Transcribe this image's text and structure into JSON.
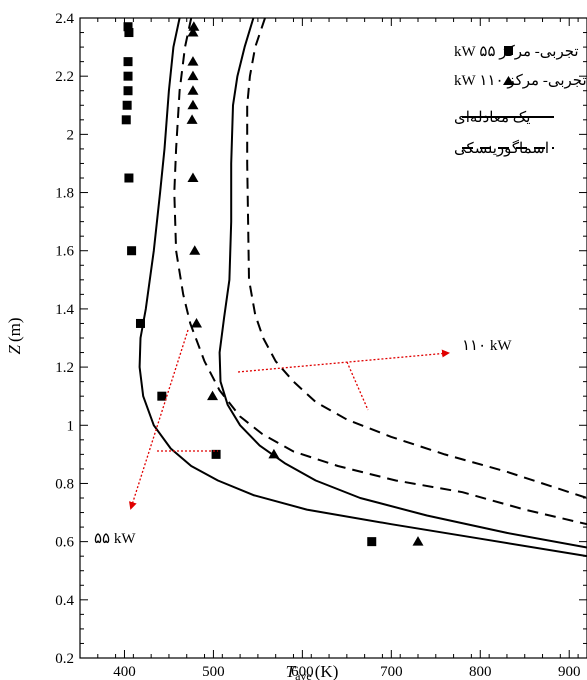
{
  "chart_data": {
    "type": "line",
    "xlabel": "T",
    "xlabel_sub": "ave",
    "xlabel_unit": "(K)",
    "ylabel": "Z",
    "ylabel_unit": "(m)",
    "xlim": [
      350,
      920
    ],
    "ylim": [
      0.2,
      2.4
    ],
    "xticks": [
      400,
      500,
      600,
      700,
      800,
      900
    ],
    "yticks": [
      0.2,
      0.4,
      0.6,
      0.8,
      1,
      1.2,
      1.4,
      1.6,
      1.8,
      2,
      2.2,
      2.4
    ],
    "xtick_labels": [
      "400",
      "500",
      "600",
      "700",
      "800",
      "900"
    ],
    "ytick_labels": [
      "0.2",
      "0.4",
      "0.6",
      "0.8",
      "1",
      "1.2",
      "1.4",
      "1.6",
      "1.8",
      "2",
      "2.2",
      "2.4"
    ],
    "grid": false,
    "legend_position": "top-right",
    "legend": [
      {
        "label": "تجربی- مرکز ۵۵ kW",
        "marker": "square"
      },
      {
        "label": "تجربی- مرکز ۱۱۰ kW",
        "marker": "triangle"
      },
      {
        "label": "یک معادله‌ای",
        "line": "solid"
      },
      {
        "label": "اسماگورینسکی",
        "line": "dashed"
      }
    ],
    "series": [
      {
        "name": "تجربی- مرکز ۵۵ kW",
        "kind": "scatter",
        "marker": "square",
        "points": [
          [
            404,
            2.37
          ],
          [
            405,
            2.35
          ],
          [
            404,
            2.25
          ],
          [
            404,
            2.2
          ],
          [
            404,
            2.15
          ],
          [
            403,
            2.1
          ],
          [
            402,
            2.05
          ],
          [
            405,
            1.85
          ],
          [
            408,
            1.6
          ],
          [
            418,
            1.35
          ],
          [
            442,
            1.1
          ],
          [
            503,
            0.9
          ],
          [
            678,
            0.6
          ]
        ]
      },
      {
        "name": "تجربی- مرکز ۱۱۰ kW",
        "kind": "scatter",
        "marker": "triangle",
        "points": [
          [
            478,
            2.37
          ],
          [
            477,
            2.35
          ],
          [
            477,
            2.25
          ],
          [
            477,
            2.2
          ],
          [
            477,
            2.15
          ],
          [
            477,
            2.1
          ],
          [
            476,
            2.05
          ],
          [
            477,
            1.85
          ],
          [
            479,
            1.6
          ],
          [
            481,
            1.35
          ],
          [
            499,
            1.1
          ],
          [
            568,
            0.9
          ],
          [
            730,
            0.6
          ]
        ]
      },
      {
        "name": "یک معادله‌ای",
        "kind": "line",
        "style": "solid",
        "group": "55 kW",
        "points": [
          [
            462,
            2.4
          ],
          [
            455,
            2.3
          ],
          [
            450,
            2.15
          ],
          [
            445,
            1.95
          ],
          [
            440,
            1.8
          ],
          [
            433,
            1.6
          ],
          [
            424,
            1.4
          ],
          [
            418,
            1.3
          ],
          [
            417,
            1.2
          ],
          [
            421,
            1.1
          ],
          [
            433,
            1.0
          ],
          [
            452,
            0.92
          ],
          [
            475,
            0.86
          ],
          [
            505,
            0.81
          ],
          [
            545,
            0.76
          ],
          [
            605,
            0.71
          ],
          [
            700,
            0.66
          ],
          [
            800,
            0.61
          ],
          [
            920,
            0.55
          ]
        ]
      },
      {
        "name": "یک معادله‌ای",
        "kind": "line",
        "style": "solid",
        "group": "110 kW",
        "points": [
          [
            545,
            2.4
          ],
          [
            535,
            2.3
          ],
          [
            527,
            2.2
          ],
          [
            522,
            2.1
          ],
          [
            520,
            1.9
          ],
          [
            520,
            1.7
          ],
          [
            518,
            1.5
          ],
          [
            512,
            1.37
          ],
          [
            507,
            1.25
          ],
          [
            508,
            1.15
          ],
          [
            516,
            1.07
          ],
          [
            530,
            1.0
          ],
          [
            552,
            0.93
          ],
          [
            580,
            0.87
          ],
          [
            615,
            0.81
          ],
          [
            665,
            0.75
          ],
          [
            740,
            0.69
          ],
          [
            830,
            0.63
          ],
          [
            920,
            0.58
          ]
        ]
      },
      {
        "name": "اسماگورینسکی",
        "kind": "line",
        "style": "dashed",
        "group": "55 kW",
        "points": [
          [
            475,
            2.4
          ],
          [
            468,
            2.3
          ],
          [
            462,
            2.15
          ],
          [
            458,
            1.95
          ],
          [
            456,
            1.8
          ],
          [
            458,
            1.6
          ],
          [
            466,
            1.45
          ],
          [
            474,
            1.35
          ],
          [
            490,
            1.22
          ],
          [
            507,
            1.12
          ],
          [
            530,
            1.03
          ],
          [
            555,
            0.97
          ],
          [
            590,
            0.91
          ],
          [
            640,
            0.86
          ],
          [
            705,
            0.81
          ],
          [
            780,
            0.77
          ],
          [
            850,
            0.71
          ],
          [
            920,
            0.66
          ]
        ]
      },
      {
        "name": "اسماگورینسکی",
        "kind": "line",
        "style": "dashed",
        "group": "110 kW",
        "points": [
          [
            558,
            2.4
          ],
          [
            547,
            2.3
          ],
          [
            541,
            2.2
          ],
          [
            538,
            2.1
          ],
          [
            538,
            1.9
          ],
          [
            539,
            1.7
          ],
          [
            540,
            1.5
          ],
          [
            547,
            1.38
          ],
          [
            556,
            1.3
          ],
          [
            570,
            1.22
          ],
          [
            590,
            1.15
          ],
          [
            615,
            1.08
          ],
          [
            650,
            1.02
          ],
          [
            700,
            0.96
          ],
          [
            760,
            0.9
          ],
          [
            830,
            0.84
          ],
          [
            920,
            0.75
          ]
        ]
      }
    ],
    "annotations": [
      {
        "text": "۱۱۰ kW"
      },
      {
        "text": "۵۵ kW"
      }
    ]
  }
}
